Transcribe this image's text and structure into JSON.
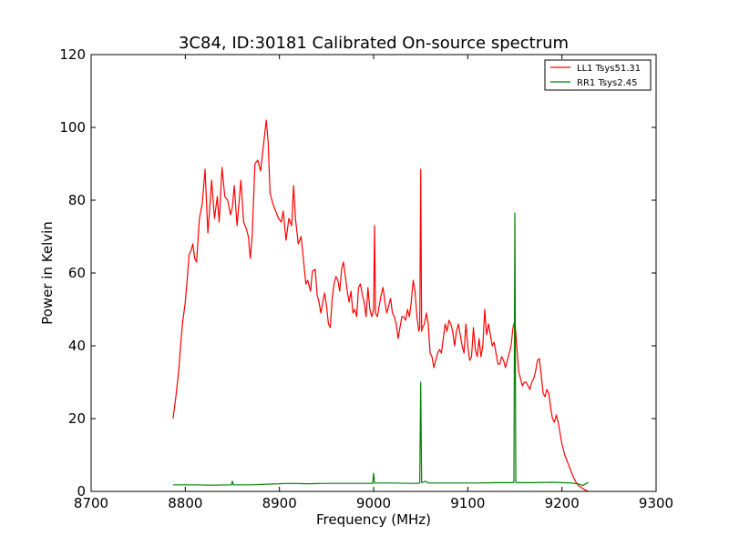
{
  "chart_data": {
    "type": "line",
    "title": "3C84, ID:30181 Calibrated On-source spectrum",
    "xlabel": "Frequency (MHz)",
    "ylabel": "Power in Kelvin",
    "xlim": [
      8700,
      9300
    ],
    "ylim": [
      0,
      120
    ],
    "xticks": [
      8700,
      8800,
      8900,
      9000,
      9100,
      9200,
      9300
    ],
    "yticks": [
      0,
      20,
      40,
      60,
      80,
      100,
      120
    ],
    "legend_position": "top-right",
    "grid": false,
    "series": [
      {
        "name": "LL1 Tsys51.31",
        "color": "#ff0000",
        "points": [
          [
            8787,
            20
          ],
          [
            8790,
            26
          ],
          [
            8793,
            33
          ],
          [
            8795,
            40
          ],
          [
            8797,
            46
          ],
          [
            8800,
            52
          ],
          [
            8802,
            58
          ],
          [
            8804,
            65
          ],
          [
            8806,
            66
          ],
          [
            8808,
            68
          ],
          [
            8810,
            64
          ],
          [
            8812,
            63
          ],
          [
            8815,
            75
          ],
          [
            8818,
            79
          ],
          [
            8821,
            88.5
          ],
          [
            8824,
            71
          ],
          [
            8826,
            78
          ],
          [
            8828,
            85.5
          ],
          [
            8831,
            75
          ],
          [
            8834,
            81
          ],
          [
            8836,
            74
          ],
          [
            8839,
            89
          ],
          [
            8842,
            81
          ],
          [
            8845,
            80
          ],
          [
            8848,
            76
          ],
          [
            8850,
            78
          ],
          [
            8852,
            84
          ],
          [
            8855,
            73
          ],
          [
            8857,
            79
          ],
          [
            8859,
            85.5
          ],
          [
            8862,
            74
          ],
          [
            8865,
            72
          ],
          [
            8867,
            70
          ],
          [
            8869,
            64
          ],
          [
            8871,
            70
          ],
          [
            8874,
            90
          ],
          [
            8877,
            91
          ],
          [
            8880,
            88
          ],
          [
            8883,
            95
          ],
          [
            8886,
            102
          ],
          [
            8888,
            96
          ],
          [
            8890,
            82
          ],
          [
            8893,
            79
          ],
          [
            8896,
            77
          ],
          [
            8899,
            75
          ],
          [
            8902,
            74
          ],
          [
            8904,
            77
          ],
          [
            8907,
            69
          ],
          [
            8910,
            75
          ],
          [
            8913,
            73
          ],
          [
            8915,
            84
          ],
          [
            8917,
            75
          ],
          [
            8920,
            68
          ],
          [
            8923,
            70
          ],
          [
            8925,
            65
          ],
          [
            8928,
            57
          ],
          [
            8930,
            58
          ],
          [
            8933,
            55
          ],
          [
            8935,
            60.5
          ],
          [
            8938,
            61
          ],
          [
            8940,
            54
          ],
          [
            8942,
            52
          ],
          [
            8944,
            49
          ],
          [
            8946,
            52
          ],
          [
            8948,
            54.5
          ],
          [
            8950,
            51
          ],
          [
            8952,
            46
          ],
          [
            8954,
            45
          ],
          [
            8956,
            53
          ],
          [
            8958,
            57
          ],
          [
            8960,
            59
          ],
          [
            8962,
            58
          ],
          [
            8964,
            55
          ],
          [
            8966,
            61
          ],
          [
            8968,
            63
          ],
          [
            8970,
            59
          ],
          [
            8972,
            55
          ],
          [
            8974,
            52
          ],
          [
            8976,
            55
          ],
          [
            8978,
            49
          ],
          [
            8980,
            50
          ],
          [
            8982,
            48
          ],
          [
            8984,
            56
          ],
          [
            8986,
            57
          ],
          [
            8988,
            54
          ],
          [
            8990,
            52
          ],
          [
            8992,
            48
          ],
          [
            8994,
            56
          ],
          [
            8996,
            50
          ],
          [
            8998,
            48
          ],
          [
            9000,
            50
          ],
          [
            9001,
            73
          ],
          [
            9002,
            49
          ],
          [
            9004,
            48
          ],
          [
            9006,
            51
          ],
          [
            9008,
            54
          ],
          [
            9010,
            56
          ],
          [
            9012,
            52
          ],
          [
            9014,
            49
          ],
          [
            9016,
            51
          ],
          [
            9018,
            53
          ],
          [
            9020,
            49
          ],
          [
            9022,
            48
          ],
          [
            9024,
            46
          ],
          [
            9026,
            42
          ],
          [
            9028,
            45
          ],
          [
            9030,
            48
          ],
          [
            9032,
            48
          ],
          [
            9034,
            47
          ],
          [
            9036,
            50
          ],
          [
            9038,
            48
          ],
          [
            9040,
            52
          ],
          [
            9042,
            58
          ],
          [
            9044,
            55
          ],
          [
            9046,
            48
          ],
          [
            9048,
            44
          ],
          [
            9049,
            45
          ],
          [
            9050,
            88.5
          ],
          [
            9051,
            44
          ],
          [
            9052,
            45
          ],
          [
            9054,
            46
          ],
          [
            9056,
            49
          ],
          [
            9058,
            46
          ],
          [
            9060,
            38
          ],
          [
            9062,
            37
          ],
          [
            9064,
            34
          ],
          [
            9066,
            36
          ],
          [
            9068,
            38
          ],
          [
            9070,
            39
          ],
          [
            9072,
            38
          ],
          [
            9074,
            42
          ],
          [
            9076,
            46
          ],
          [
            9078,
            44
          ],
          [
            9080,
            47
          ],
          [
            9082,
            46
          ],
          [
            9084,
            44
          ],
          [
            9086,
            40
          ],
          [
            9088,
            44
          ],
          [
            9090,
            46
          ],
          [
            9092,
            43
          ],
          [
            9094,
            40
          ],
          [
            9096,
            38
          ],
          [
            9098,
            46
          ],
          [
            9100,
            40
          ],
          [
            9102,
            36
          ],
          [
            9104,
            37
          ],
          [
            9106,
            45
          ],
          [
            9108,
            39
          ],
          [
            9110,
            37
          ],
          [
            9112,
            42
          ],
          [
            9114,
            37
          ],
          [
            9116,
            40
          ],
          [
            9118,
            50
          ],
          [
            9120,
            43
          ],
          [
            9122,
            46
          ],
          [
            9124,
            43
          ],
          [
            9126,
            40
          ],
          [
            9128,
            41
          ],
          [
            9130,
            38
          ],
          [
            9132,
            35
          ],
          [
            9134,
            35
          ],
          [
            9136,
            37
          ],
          [
            9138,
            36
          ],
          [
            9140,
            34
          ],
          [
            9142,
            36
          ],
          [
            9144,
            38
          ],
          [
            9146,
            40
          ],
          [
            9148,
            45
          ],
          [
            9150,
            47
          ],
          [
            9152,
            40
          ],
          [
            9154,
            33
          ],
          [
            9156,
            31
          ],
          [
            9158,
            29
          ],
          [
            9160,
            30
          ],
          [
            9162,
            30
          ],
          [
            9164,
            29
          ],
          [
            9166,
            28
          ],
          [
            9168,
            30
          ],
          [
            9170,
            31
          ],
          [
            9172,
            33
          ],
          [
            9174,
            36
          ],
          [
            9176,
            36.5
          ],
          [
            9178,
            32
          ],
          [
            9180,
            27
          ],
          [
            9182,
            26
          ],
          [
            9184,
            28
          ],
          [
            9186,
            27
          ],
          [
            9188,
            23
          ],
          [
            9190,
            20
          ],
          [
            9192,
            19
          ],
          [
            9194,
            21
          ],
          [
            9196,
            19
          ],
          [
            9198,
            16
          ],
          [
            9200,
            13
          ],
          [
            9203,
            10
          ],
          [
            9206,
            8
          ],
          [
            9209,
            6
          ],
          [
            9212,
            4
          ],
          [
            9215,
            2.5
          ],
          [
            9218,
            1.5
          ],
          [
            9222,
            0.8
          ],
          [
            9226,
            0.2
          ],
          [
            9228,
            0
          ]
        ]
      },
      {
        "name": "RR1 Tsys2.45",
        "color": "#008000",
        "points": [
          [
            8787,
            1.8
          ],
          [
            8810,
            1.8
          ],
          [
            8830,
            1.7
          ],
          [
            8849,
            1.8
          ],
          [
            8850,
            2.8
          ],
          [
            8851,
            1.8
          ],
          [
            8870,
            1.8
          ],
          [
            8890,
            2
          ],
          [
            8910,
            2.2
          ],
          [
            8930,
            2.1
          ],
          [
            8950,
            2.2
          ],
          [
            8970,
            2.2
          ],
          [
            8990,
            2.2
          ],
          [
            8999,
            2.2
          ],
          [
            9000,
            5
          ],
          [
            9001,
            2.3
          ],
          [
            9020,
            2.3
          ],
          [
            9040,
            2.2
          ],
          [
            9048,
            2.2
          ],
          [
            9049,
            2.4
          ],
          [
            9050,
            30
          ],
          [
            9051,
            2.4
          ],
          [
            9055,
            2.8
          ],
          [
            9058,
            2.3
          ],
          [
            9070,
            2.3
          ],
          [
            9090,
            2.3
          ],
          [
            9110,
            2.3
          ],
          [
            9130,
            2.4
          ],
          [
            9148,
            2.4
          ],
          [
            9149,
            2.5
          ],
          [
            9150,
            76.5
          ],
          [
            9151,
            2.5
          ],
          [
            9152,
            2.4
          ],
          [
            9170,
            2.4
          ],
          [
            9190,
            2.5
          ],
          [
            9200,
            2.4
          ],
          [
            9210,
            2.3
          ],
          [
            9218,
            2.0
          ],
          [
            9222,
            1.6
          ],
          [
            9226,
            2.2
          ],
          [
            9228,
            2.5
          ]
        ]
      }
    ]
  }
}
